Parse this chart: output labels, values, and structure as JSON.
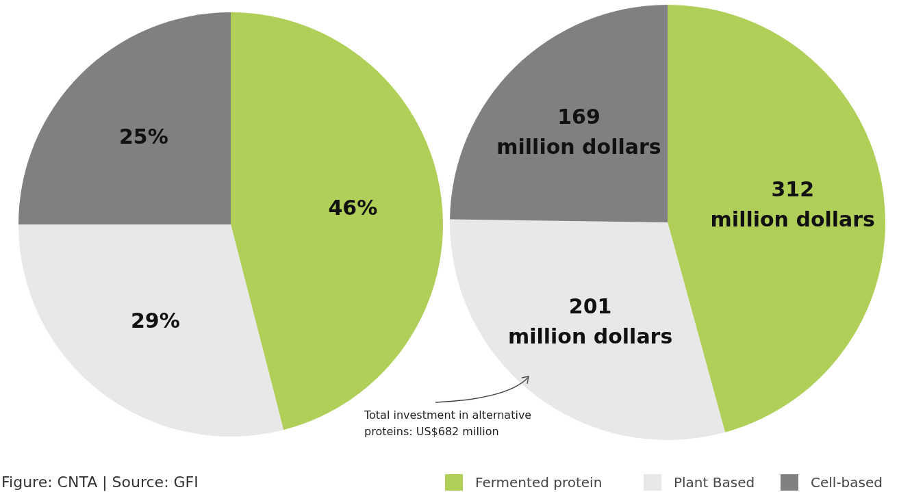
{
  "chart_data": [
    {
      "type": "pie",
      "categories": [
        null,
        null,
        null
      ],
      "values": [
        46,
        29,
        25
      ],
      "colors": [
        "#b0cf58",
        "#e8e8e8",
        "#808080"
      ],
      "value_labels": [
        "46%",
        "29%",
        "25%"
      ],
      "annotations": [
        "Figure: CNTA | Source: GFI"
      ]
    },
    {
      "type": "pie",
      "categories": [
        "Fermented protein",
        "Plant Based",
        "Cell-based"
      ],
      "values": [
        312,
        201,
        169
      ],
      "colors": [
        "#b0cf58",
        "#e8e8e8",
        "#808080"
      ],
      "value_labels": [
        "312 million dollars",
        "201 million dollars",
        "169 million dollars"
      ],
      "legend": "bottom right",
      "annotations": [
        "Total investment in alternative proteins: US$682 million"
      ]
    }
  ]
}
